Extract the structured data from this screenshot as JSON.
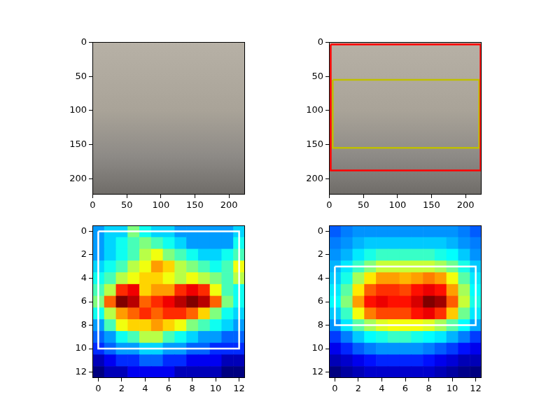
{
  "chart_data": [
    {
      "type": "image",
      "xlim": [
        -0.5,
        223.5
      ],
      "ylim": [
        223.5,
        -0.5
      ],
      "xticks": [
        0,
        50,
        100,
        150,
        200
      ],
      "yticks": [
        0,
        50,
        100,
        150,
        200
      ]
    },
    {
      "type": "image",
      "xlim": [
        -0.5,
        223.5
      ],
      "ylim": [
        223.5,
        -0.5
      ],
      "xticks": [
        0,
        50,
        100,
        150,
        200
      ],
      "yticks": [
        0,
        50,
        100,
        150,
        200
      ],
      "boxes": [
        {
          "x": [
            2,
            222
          ],
          "y": [
            3,
            188
          ],
          "color": "#ff0000"
        },
        {
          "x": [
            5,
            220
          ],
          "y": [
            55,
            155
          ],
          "color": "#bfbf00"
        }
      ]
    },
    {
      "type": "heatmap",
      "xlim": [
        -0.5,
        12.5
      ],
      "ylim": [
        12.5,
        -0.5
      ],
      "xticks": [
        0,
        2,
        4,
        6,
        8,
        10,
        12
      ],
      "yticks": [
        0,
        2,
        4,
        6,
        8,
        10,
        12
      ],
      "cells": [
        [
          0.3,
          0.35,
          0.35,
          0.5,
          0.4,
          0.35,
          0.35,
          0.3,
          0.3,
          0.3,
          0.3,
          0.3,
          0.35
        ],
        [
          0.3,
          0.35,
          0.4,
          0.45,
          0.5,
          0.45,
          0.4,
          0.35,
          0.3,
          0.3,
          0.3,
          0.3,
          0.4
        ],
        [
          0.3,
          0.35,
          0.4,
          0.45,
          0.55,
          0.6,
          0.5,
          0.45,
          0.4,
          0.35,
          0.35,
          0.4,
          0.45
        ],
        [
          0.35,
          0.4,
          0.45,
          0.55,
          0.6,
          0.7,
          0.65,
          0.55,
          0.5,
          0.45,
          0.4,
          0.45,
          0.6
        ],
        [
          0.4,
          0.45,
          0.55,
          0.6,
          0.65,
          0.65,
          0.6,
          0.55,
          0.6,
          0.55,
          0.5,
          0.45,
          0.55
        ],
        [
          0.45,
          0.55,
          0.8,
          0.85,
          0.65,
          0.7,
          0.7,
          0.8,
          0.85,
          0.8,
          0.6,
          0.45,
          0.4
        ],
        [
          0.5,
          0.75,
          0.95,
          0.9,
          0.75,
          0.8,
          0.85,
          0.9,
          0.95,
          0.9,
          0.75,
          0.5,
          0.4
        ],
        [
          0.4,
          0.55,
          0.7,
          0.75,
          0.8,
          0.75,
          0.8,
          0.8,
          0.75,
          0.65,
          0.5,
          0.4,
          0.35
        ],
        [
          0.3,
          0.45,
          0.6,
          0.65,
          0.65,
          0.7,
          0.65,
          0.6,
          0.5,
          0.45,
          0.4,
          0.35,
          0.3
        ],
        [
          0.25,
          0.3,
          0.4,
          0.45,
          0.55,
          0.55,
          0.45,
          0.4,
          0.35,
          0.3,
          0.3,
          0.25,
          0.25
        ],
        [
          0.2,
          0.25,
          0.3,
          0.3,
          0.35,
          0.35,
          0.3,
          0.3,
          0.25,
          0.25,
          0.2,
          0.2,
          0.2
        ],
        [
          0.1,
          0.15,
          0.2,
          0.2,
          0.25,
          0.25,
          0.2,
          0.2,
          0.15,
          0.15,
          0.15,
          0.1,
          0.1
        ],
        [
          0.05,
          0.1,
          0.1,
          0.15,
          0.15,
          0.15,
          0.15,
          0.1,
          0.1,
          0.1,
          0.1,
          0.05,
          0.05
        ]
      ],
      "boxes": [
        {
          "x": [
            0,
            12
          ],
          "y": [
            0,
            10
          ],
          "color": "#ffffff"
        }
      ]
    },
    {
      "type": "heatmap",
      "xlim": [
        -0.5,
        12.5
      ],
      "ylim": [
        12.5,
        -0.5
      ],
      "xticks": [
        0,
        2,
        4,
        6,
        8,
        10,
        12
      ],
      "yticks": [
        0,
        2,
        4,
        6,
        8,
        10,
        12
      ],
      "cells": [
        [
          0.25,
          0.28,
          0.3,
          0.3,
          0.3,
          0.3,
          0.3,
          0.3,
          0.3,
          0.3,
          0.3,
          0.28,
          0.25
        ],
        [
          0.28,
          0.3,
          0.33,
          0.35,
          0.35,
          0.35,
          0.35,
          0.35,
          0.35,
          0.35,
          0.33,
          0.3,
          0.28
        ],
        [
          0.3,
          0.33,
          0.38,
          0.42,
          0.45,
          0.45,
          0.45,
          0.45,
          0.45,
          0.42,
          0.4,
          0.35,
          0.3
        ],
        [
          0.33,
          0.38,
          0.45,
          0.52,
          0.58,
          0.58,
          0.58,
          0.58,
          0.58,
          0.55,
          0.5,
          0.42,
          0.35
        ],
        [
          0.35,
          0.42,
          0.55,
          0.65,
          0.72,
          0.72,
          0.7,
          0.72,
          0.75,
          0.72,
          0.62,
          0.48,
          0.38
        ],
        [
          0.38,
          0.48,
          0.65,
          0.78,
          0.82,
          0.82,
          0.8,
          0.85,
          0.88,
          0.85,
          0.72,
          0.55,
          0.4
        ],
        [
          0.4,
          0.52,
          0.72,
          0.85,
          0.88,
          0.85,
          0.85,
          0.9,
          0.98,
          0.95,
          0.78,
          0.58,
          0.42
        ],
        [
          0.35,
          0.45,
          0.62,
          0.75,
          0.8,
          0.8,
          0.8,
          0.85,
          0.88,
          0.82,
          0.68,
          0.5,
          0.38
        ],
        [
          0.3,
          0.38,
          0.48,
          0.55,
          0.6,
          0.62,
          0.62,
          0.62,
          0.6,
          0.55,
          0.48,
          0.4,
          0.32
        ],
        [
          0.22,
          0.28,
          0.35,
          0.4,
          0.42,
          0.45,
          0.45,
          0.42,
          0.4,
          0.38,
          0.33,
          0.28,
          0.22
        ],
        [
          0.15,
          0.2,
          0.25,
          0.28,
          0.3,
          0.3,
          0.3,
          0.3,
          0.28,
          0.25,
          0.22,
          0.18,
          0.15
        ],
        [
          0.1,
          0.12,
          0.15,
          0.18,
          0.2,
          0.2,
          0.2,
          0.2,
          0.18,
          0.15,
          0.13,
          0.1,
          0.1
        ],
        [
          0.05,
          0.08,
          0.1,
          0.12,
          0.12,
          0.12,
          0.12,
          0.12,
          0.12,
          0.1,
          0.08,
          0.06,
          0.05
        ]
      ],
      "boxes": [
        {
          "x": [
            0,
            12
          ],
          "y": [
            3,
            8
          ],
          "color": "#ffffff"
        }
      ]
    }
  ]
}
